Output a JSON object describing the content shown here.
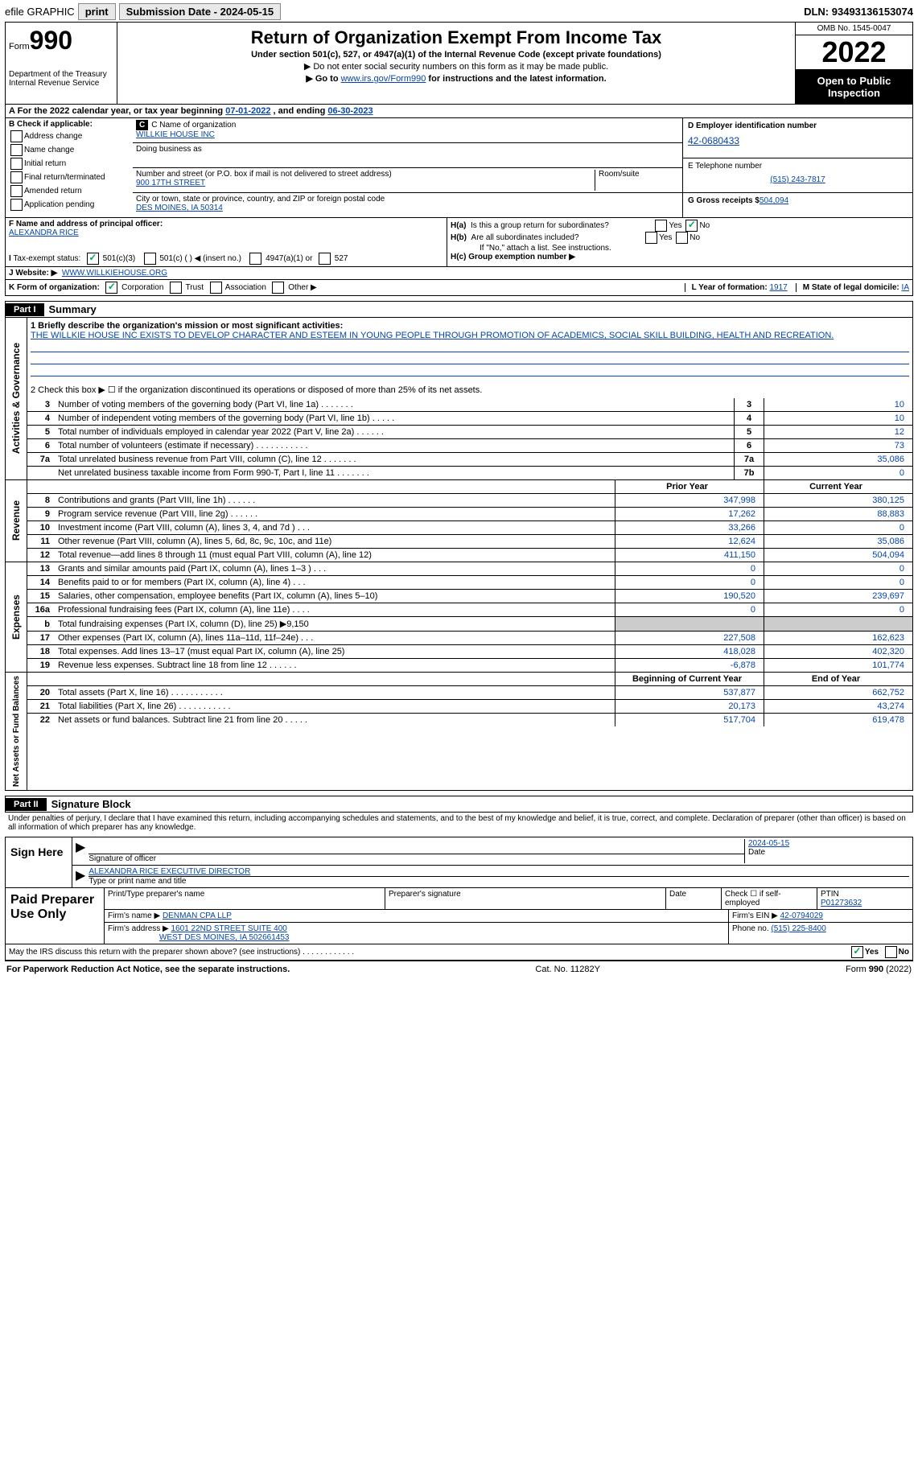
{
  "topbar": {
    "efile": "efile GRAPHIC",
    "print": "print",
    "subdate_label": "Submission Date - ",
    "subdate": "2024-05-15",
    "dln_label": "DLN: ",
    "dln": "93493136153074"
  },
  "header": {
    "formword": "Form",
    "form": "990",
    "title": "Return of Organization Exempt From Income Tax",
    "sub1": "Under section 501(c), 527, or 4947(a)(1) of the Internal Revenue Code (except private foundations)",
    "sub2": "▶ Do not enter social security numbers on this form as it may be made public.",
    "sub3a": "▶ Go to ",
    "sub3link": "www.irs.gov/Form990",
    "sub3b": " for instructions and the latest information.",
    "dept": "Department of the Treasury\nInternal Revenue Service",
    "omb": "OMB No. 1545-0047",
    "year": "2022",
    "inspect": "Open to Public Inspection"
  },
  "a": {
    "line": "A For the 2022 calendar year, or tax year beginning ",
    "begin": "07-01-2022",
    "mid": " , and ending ",
    "end": "06-30-2023"
  },
  "b": {
    "label": "B Check if applicable:",
    "items": [
      "Address change",
      "Name change",
      "Initial return",
      "Final return/terminated",
      "Amended return",
      "Application pending"
    ]
  },
  "c": {
    "label": "C Name of organization",
    "name": "WILLKIE HOUSE INC",
    "dba": "Doing business as",
    "addr_label": "Number and street (or P.O. box if mail is not delivered to street address)",
    "room": "Room/suite",
    "addr": "900 17TH STREET",
    "city_label": "City or town, state or province, country, and ZIP or foreign postal code",
    "city": "DES MOINES, IA  50314"
  },
  "d": {
    "label": "D Employer identification number",
    "ein": "42-0680433"
  },
  "e": {
    "label": "E Telephone number",
    "tel": "(515) 243-7817"
  },
  "g": {
    "label": "G Gross receipts $",
    "val": "504,094"
  },
  "f": {
    "label": "F Name and address of principal officer:",
    "name": "ALEXANDRA RICE"
  },
  "h": {
    "a": "H(a)  Is this a group return for subordinates?",
    "b": "H(b)  Are all subordinates included?",
    "bnote": "If \"No,\" attach a list. See instructions.",
    "c": "H(c)  Group exemption number ▶",
    "yes": "Yes",
    "no": "No"
  },
  "i": {
    "label": "I   Tax-exempt status:",
    "c3": "501(c)(3)",
    "c": "501(c) (  ) ◀ (insert no.)",
    "a1": "4947(a)(1) or",
    "s527": "527"
  },
  "j": {
    "label": "J   Website: ▶",
    "val": "WWW.WILLKIEHOUSE.ORG"
  },
  "k": {
    "label": "K Form of organization:",
    "corp": "Corporation",
    "trust": "Trust",
    "assoc": "Association",
    "other": "Other ▶"
  },
  "l": {
    "label": "L Year of formation: ",
    "val": "1917"
  },
  "m": {
    "label": "M State of legal domicile: ",
    "val": "IA"
  },
  "part1": {
    "hdr": "Part I",
    "title": "Summary",
    "q1a": "1   Briefly describe the organization's mission or most significant activities:",
    "q1b": "THE WILLKIE HOUSE INC EXISTS TO DEVELOP CHARACTER AND ESTEEM IN YOUNG PEOPLE THROUGH PROMOTION OF ACADEMICS, SOCIAL SKILL BUILDING, HEALTH AND RECREATION.",
    "q2": "2   Check this box ▶ ☐  if the organization discontinued its operations or disposed of more than 25% of its net assets.",
    "rows": [
      {
        "n": "3",
        "t": "Number of voting members of the governing body (Part VI, line 1a)   .    .    .    .    .    .    .",
        "b": "3",
        "v": "10"
      },
      {
        "n": "4",
        "t": "Number of independent voting members of the governing body (Part VI, line 1b)   .    .    .    .    .",
        "b": "4",
        "v": "10"
      },
      {
        "n": "5",
        "t": "Total number of individuals employed in calendar year 2022 (Part V, line 2a)   .    .    .    .    .    .",
        "b": "5",
        "v": "12"
      },
      {
        "n": "6",
        "t": "Total number of volunteers (estimate if necessary)    .    .    .    .    .    .    .    .    .    .    .",
        "b": "6",
        "v": "73"
      },
      {
        "n": "7a",
        "t": "Total unrelated business revenue from Part VIII, column (C), line 12   .    .    .    .    .    .    .",
        "b": "7a",
        "v": "35,086"
      },
      {
        "n": "",
        "t": "Net unrelated business taxable income from Form 990-T, Part I, line 11   .    .    .    .    .    .    .",
        "b": "7b",
        "v": "0"
      }
    ]
  },
  "revenue": {
    "vtab": "Revenue",
    "hdr_prior": "Prior Year",
    "hdr_curr": "Current Year",
    "rows": [
      {
        "n": "8",
        "t": "Contributions and grants (Part VIII, line 1h)   .    .    .    .    .    .",
        "p": "347,998",
        "c": "380,125"
      },
      {
        "n": "9",
        "t": "Program service revenue (Part VIII, line 2g)   .    .    .    .    .    .",
        "p": "17,262",
        "c": "88,883"
      },
      {
        "n": "10",
        "t": "Investment income (Part VIII, column (A), lines 3, 4, and 7d )   .    .    .",
        "p": "33,266",
        "c": "0"
      },
      {
        "n": "11",
        "t": "Other revenue (Part VIII, column (A), lines 5, 6d, 8c, 9c, 10c, and 11e)",
        "p": "12,624",
        "c": "35,086"
      },
      {
        "n": "12",
        "t": "Total revenue—add lines 8 through 11 (must equal Part VIII, column (A), line 12)",
        "p": "411,150",
        "c": "504,094"
      }
    ]
  },
  "expenses": {
    "vtab": "Expenses",
    "rows": [
      {
        "n": "13",
        "t": "Grants and similar amounts paid (Part IX, column (A), lines 1–3 )   .    .    .",
        "p": "0",
        "c": "0"
      },
      {
        "n": "14",
        "t": "Benefits paid to or for members (Part IX, column (A), line 4)   .    .    .",
        "p": "0",
        "c": "0"
      },
      {
        "n": "15",
        "t": "Salaries, other compensation, employee benefits (Part IX, column (A), lines 5–10)",
        "p": "190,520",
        "c": "239,697"
      },
      {
        "n": "16a",
        "t": "Professional fundraising fees (Part IX, column (A), line 11e)   .    .    .    .",
        "p": "0",
        "c": "0"
      },
      {
        "n": "b",
        "t": "Total fundraising expenses (Part IX, column (D), line 25) ▶9,150",
        "p": "",
        "c": "",
        "gray": true
      },
      {
        "n": "17",
        "t": "Other expenses (Part IX, column (A), lines 11a–11d, 11f–24e)   .    .    .",
        "p": "227,508",
        "c": "162,623"
      },
      {
        "n": "18",
        "t": "Total expenses. Add lines 13–17 (must equal Part IX, column (A), line 25)",
        "p": "418,028",
        "c": "402,320"
      },
      {
        "n": "19",
        "t": "Revenue less expenses. Subtract line 18 from line 12   .    .    .    .    .    .",
        "p": "-6,878",
        "c": "101,774"
      }
    ]
  },
  "netassets": {
    "vtab": "Net Assets or Fund Balances",
    "hdr_begin": "Beginning of Current Year",
    "hdr_end": "End of Year",
    "rows": [
      {
        "n": "20",
        "t": "Total assets (Part X, line 16)   .    .    .    .    .    .    .    .    .    .    .",
        "p": "537,877",
        "c": "662,752"
      },
      {
        "n": "21",
        "t": "Total liabilities (Part X, line 26)   .    .    .    .    .    .    .    .    .    .    .",
        "p": "20,173",
        "c": "43,274"
      },
      {
        "n": "22",
        "t": "Net assets or fund balances. Subtract line 21 from line 20   .    .    .    .    .",
        "p": "517,704",
        "c": "619,478"
      }
    ]
  },
  "part2": {
    "hdr": "Part II",
    "title": "Signature Block",
    "text": "Under penalties of perjury, I declare that I have examined this return, including accompanying schedules and statements, and to the best of my knowledge and belief, it is true, correct, and complete. Declaration of preparer (other than officer) is based on all information of which preparer has any knowledge."
  },
  "sign": {
    "label": "Sign Here",
    "sig": "Signature of officer",
    "date": "2024-05-15",
    "name": "ALEXANDRA RICE  EXECUTIVE DIRECTOR",
    "nametype": "Type or print name and title"
  },
  "paid": {
    "label": "Paid Preparer Use Only",
    "h1": "Print/Type preparer's name",
    "h2": "Preparer's signature",
    "h3": "Date",
    "h4": "Check ☐ if self-employed",
    "h5": "PTIN",
    "ptin": "P01273632",
    "firm_label": "Firm's name    ▶",
    "firm": "DENMAN CPA LLP",
    "ein_label": "Firm's EIN ▶",
    "ein": "42-0794029",
    "addr_label": "Firm's address ▶",
    "addr1": "1601 22ND STREET SUITE 400",
    "addr2": "WEST DES MOINES, IA  502661453",
    "phone_label": "Phone no. ",
    "phone": "(515) 225-8400"
  },
  "discuss": {
    "q": "May the IRS discuss this return with the preparer shown above? (see instructions)   .    .    .    .    .    .    .    .    .    .    .    .",
    "yes": "Yes",
    "no": "No"
  },
  "footer": {
    "left": "For Paperwork Reduction Act Notice, see the separate instructions.",
    "mid": "Cat. No. 11282Y",
    "right": "Form 990 (2022)"
  },
  "vtabs": {
    "gov": "Activities & Governance"
  }
}
